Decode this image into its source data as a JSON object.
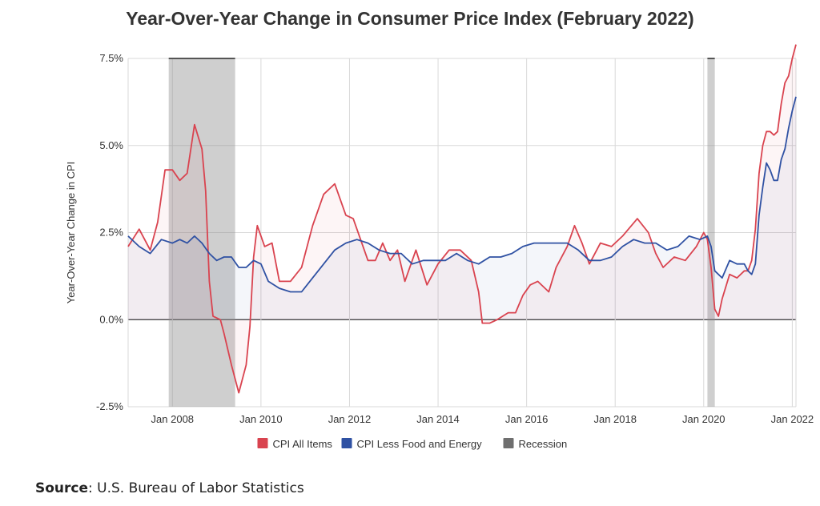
{
  "chart_data": {
    "type": "line",
    "title": "Year-Over-Year Change in Consumer Price Index (February 2022)",
    "ylabel": "Year-Over-Year Change in CPI",
    "xlabel": "",
    "ylim": [
      -2.5,
      7.5
    ],
    "yticks": [
      -2.5,
      0.0,
      2.5,
      5.0,
      7.5
    ],
    "ytick_labels": [
      "-2.5%",
      "0.0%",
      "2.5%",
      "5.0%",
      "7.5%"
    ],
    "xlim": [
      "2007-01",
      "2022-02"
    ],
    "xticks": [
      "2008-01",
      "2010-01",
      "2012-01",
      "2014-01",
      "2016-01",
      "2018-01",
      "2020-01",
      "2022-01"
    ],
    "xtick_labels": [
      "Jan 2008",
      "Jan 2010",
      "Jan 2012",
      "Jan 2014",
      "Jan 2016",
      "Jan 2018",
      "Jan 2020",
      "Jan 2022"
    ],
    "grid": true,
    "legend_position": "bottom",
    "series": [
      {
        "name": "CPI All Items",
        "color": "#d9434f",
        "points": [
          [
            "2007-01",
            2.1
          ],
          [
            "2007-04",
            2.6
          ],
          [
            "2007-07",
            2.0
          ],
          [
            "2007-09",
            2.8
          ],
          [
            "2007-11",
            4.3
          ],
          [
            "2008-01",
            4.3
          ],
          [
            "2008-03",
            4.0
          ],
          [
            "2008-05",
            4.2
          ],
          [
            "2008-07",
            5.6
          ],
          [
            "2008-09",
            4.9
          ],
          [
            "2008-10",
            3.7
          ],
          [
            "2008-11",
            1.1
          ],
          [
            "2008-12",
            0.1
          ],
          [
            "2009-02",
            0.0
          ],
          [
            "2009-03",
            -0.4
          ],
          [
            "2009-05",
            -1.3
          ],
          [
            "2009-07",
            -2.1
          ],
          [
            "2009-09",
            -1.3
          ],
          [
            "2009-10",
            -0.2
          ],
          [
            "2009-11",
            1.8
          ],
          [
            "2009-12",
            2.7
          ],
          [
            "2010-02",
            2.1
          ],
          [
            "2010-04",
            2.2
          ],
          [
            "2010-06",
            1.1
          ],
          [
            "2010-09",
            1.1
          ],
          [
            "2010-12",
            1.5
          ],
          [
            "2011-03",
            2.7
          ],
          [
            "2011-06",
            3.6
          ],
          [
            "2011-09",
            3.9
          ],
          [
            "2011-12",
            3.0
          ],
          [
            "2012-02",
            2.9
          ],
          [
            "2012-04",
            2.3
          ],
          [
            "2012-06",
            1.7
          ],
          [
            "2012-08",
            1.7
          ],
          [
            "2012-10",
            2.2
          ],
          [
            "2012-12",
            1.7
          ],
          [
            "2013-02",
            2.0
          ],
          [
            "2013-04",
            1.1
          ],
          [
            "2013-07",
            2.0
          ],
          [
            "2013-10",
            1.0
          ],
          [
            "2014-01",
            1.6
          ],
          [
            "2014-04",
            2.0
          ],
          [
            "2014-07",
            2.0
          ],
          [
            "2014-10",
            1.7
          ],
          [
            "2014-12",
            0.8
          ],
          [
            "2015-01",
            -0.1
          ],
          [
            "2015-03",
            -0.1
          ],
          [
            "2015-05",
            0.0
          ],
          [
            "2015-08",
            0.2
          ],
          [
            "2015-10",
            0.2
          ],
          [
            "2015-12",
            0.7
          ],
          [
            "2016-02",
            1.0
          ],
          [
            "2016-04",
            1.1
          ],
          [
            "2016-07",
            0.8
          ],
          [
            "2016-09",
            1.5
          ],
          [
            "2016-12",
            2.1
          ],
          [
            "2017-02",
            2.7
          ],
          [
            "2017-04",
            2.2
          ],
          [
            "2017-06",
            1.6
          ],
          [
            "2017-09",
            2.2
          ],
          [
            "2017-12",
            2.1
          ],
          [
            "2018-03",
            2.4
          ],
          [
            "2018-07",
            2.9
          ],
          [
            "2018-10",
            2.5
          ],
          [
            "2018-12",
            1.9
          ],
          [
            "2019-02",
            1.5
          ],
          [
            "2019-05",
            1.8
          ],
          [
            "2019-08",
            1.7
          ],
          [
            "2019-11",
            2.1
          ],
          [
            "2020-01",
            2.5
          ],
          [
            "2020-02",
            2.3
          ],
          [
            "2020-03",
            1.5
          ],
          [
            "2020-04",
            0.3
          ],
          [
            "2020-05",
            0.1
          ],
          [
            "2020-06",
            0.6
          ],
          [
            "2020-08",
            1.3
          ],
          [
            "2020-10",
            1.2
          ],
          [
            "2020-12",
            1.4
          ],
          [
            "2021-01",
            1.4
          ],
          [
            "2021-02",
            1.7
          ],
          [
            "2021-03",
            2.6
          ],
          [
            "2021-04",
            4.2
          ],
          [
            "2021-05",
            5.0
          ],
          [
            "2021-06",
            5.4
          ],
          [
            "2021-07",
            5.4
          ],
          [
            "2021-08",
            5.3
          ],
          [
            "2021-09",
            5.4
          ],
          [
            "2021-10",
            6.2
          ],
          [
            "2021-11",
            6.8
          ],
          [
            "2021-12",
            7.0
          ],
          [
            "2022-01",
            7.5
          ],
          [
            "2022-02",
            7.9
          ]
        ]
      },
      {
        "name": "CPI Less Food and Energy",
        "color": "#2f51a3",
        "points": [
          [
            "2007-01",
            2.4
          ],
          [
            "2007-04",
            2.1
          ],
          [
            "2007-07",
            1.9
          ],
          [
            "2007-10",
            2.3
          ],
          [
            "2008-01",
            2.2
          ],
          [
            "2008-03",
            2.3
          ],
          [
            "2008-05",
            2.2
          ],
          [
            "2008-07",
            2.4
          ],
          [
            "2008-09",
            2.2
          ],
          [
            "2008-11",
            1.9
          ],
          [
            "2009-01",
            1.7
          ],
          [
            "2009-03",
            1.8
          ],
          [
            "2009-05",
            1.8
          ],
          [
            "2009-07",
            1.5
          ],
          [
            "2009-09",
            1.5
          ],
          [
            "2009-11",
            1.7
          ],
          [
            "2010-01",
            1.6
          ],
          [
            "2010-03",
            1.1
          ],
          [
            "2010-06",
            0.9
          ],
          [
            "2010-09",
            0.8
          ],
          [
            "2010-12",
            0.8
          ],
          [
            "2011-03",
            1.2
          ],
          [
            "2011-06",
            1.6
          ],
          [
            "2011-09",
            2.0
          ],
          [
            "2011-12",
            2.2
          ],
          [
            "2012-03",
            2.3
          ],
          [
            "2012-06",
            2.2
          ],
          [
            "2012-09",
            2.0
          ],
          [
            "2012-12",
            1.9
          ],
          [
            "2013-03",
            1.9
          ],
          [
            "2013-06",
            1.6
          ],
          [
            "2013-09",
            1.7
          ],
          [
            "2013-12",
            1.7
          ],
          [
            "2014-03",
            1.7
          ],
          [
            "2014-06",
            1.9
          ],
          [
            "2014-09",
            1.7
          ],
          [
            "2014-12",
            1.6
          ],
          [
            "2015-03",
            1.8
          ],
          [
            "2015-06",
            1.8
          ],
          [
            "2015-09",
            1.9
          ],
          [
            "2015-12",
            2.1
          ],
          [
            "2016-03",
            2.2
          ],
          [
            "2016-06",
            2.2
          ],
          [
            "2016-09",
            2.2
          ],
          [
            "2016-12",
            2.2
          ],
          [
            "2017-03",
            2.0
          ],
          [
            "2017-06",
            1.7
          ],
          [
            "2017-09",
            1.7
          ],
          [
            "2017-12",
            1.8
          ],
          [
            "2018-03",
            2.1
          ],
          [
            "2018-06",
            2.3
          ],
          [
            "2018-09",
            2.2
          ],
          [
            "2018-12",
            2.2
          ],
          [
            "2019-03",
            2.0
          ],
          [
            "2019-06",
            2.1
          ],
          [
            "2019-09",
            2.4
          ],
          [
            "2019-12",
            2.3
          ],
          [
            "2020-02",
            2.4
          ],
          [
            "2020-03",
            2.1
          ],
          [
            "2020-04",
            1.4
          ],
          [
            "2020-06",
            1.2
          ],
          [
            "2020-08",
            1.7
          ],
          [
            "2020-10",
            1.6
          ],
          [
            "2020-12",
            1.6
          ],
          [
            "2021-01",
            1.4
          ],
          [
            "2021-02",
            1.3
          ],
          [
            "2021-03",
            1.6
          ],
          [
            "2021-04",
            3.0
          ],
          [
            "2021-05",
            3.8
          ],
          [
            "2021-06",
            4.5
          ],
          [
            "2021-07",
            4.3
          ],
          [
            "2021-08",
            4.0
          ],
          [
            "2021-09",
            4.0
          ],
          [
            "2021-10",
            4.6
          ],
          [
            "2021-11",
            4.9
          ],
          [
            "2021-12",
            5.5
          ],
          [
            "2022-01",
            6.0
          ],
          [
            "2022-02",
            6.4
          ]
        ]
      }
    ],
    "recessions": [
      {
        "start": "2007-12",
        "end": "2009-06"
      },
      {
        "start": "2020-02",
        "end": "2020-04"
      }
    ],
    "legend": [
      {
        "label": "CPI All Items",
        "color": "#d9434f"
      },
      {
        "label": "CPI Less Food and Energy",
        "color": "#2f51a3"
      },
      {
        "label": "Recession",
        "color": "#6f6f6f"
      }
    ]
  },
  "source": {
    "label": "Source",
    "text": ": U.S. Bureau of Labor Statistics"
  }
}
